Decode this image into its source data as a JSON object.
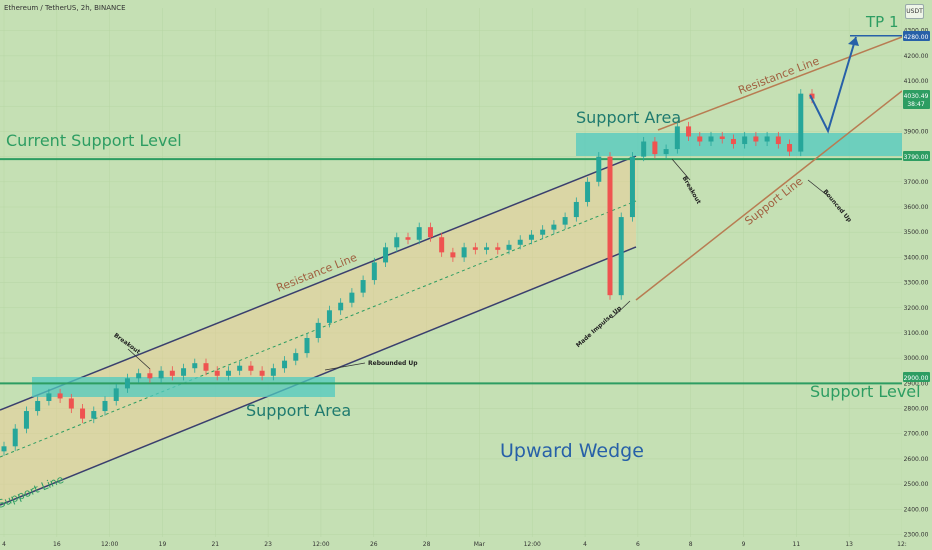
{
  "header": {
    "symbol": "Ethereum / TetherUS, 2h, BINANCE",
    "currency_badge": "USDT"
  },
  "annotations": {
    "current_support_level": "Current Support Level",
    "support_area_left": "Support Area",
    "support_area_right": "Support Area",
    "support_level": "Support Level",
    "upward_wedge": "Upward Wedge",
    "tp1": "TP 1",
    "resistance_line_channel": "Resistance Line",
    "support_line_channel": "Support Line",
    "resistance_line_wedge": "Resistance Line",
    "support_line_wedge": "Support Line",
    "breakout_left": "Breakout",
    "breakout_right": "Breakout",
    "rebounded_up": "Rebounded Up",
    "made_impulse_up": "Made Impulse Up",
    "bounced_up": "Bounced Up"
  },
  "chart_data": {
    "type": "line",
    "title": "Ethereum / TetherUS, 2h, BINANCE",
    "ylim": [
      2290,
      4390
    ],
    "y_ticks": [
      2300,
      2400,
      2500,
      2600,
      2700,
      2800,
      2900,
      3000,
      3100,
      3200,
      3300,
      3400,
      3500,
      3600,
      3700,
      3800,
      3900,
      4000,
      4100,
      4200,
      4300
    ],
    "x_ticks": [
      "4",
      "16",
      "12:00",
      "19",
      "21",
      "23",
      "12:00",
      "26",
      "28",
      "Mar",
      "12:00",
      "4",
      "6",
      "8",
      "9",
      "11",
      "13",
      "12:"
    ],
    "price_labels": {
      "tp1": "4280.00",
      "current": "4030.49",
      "countdown": "38:47",
      "support_current": "3790.00",
      "support_level": "2900.00"
    },
    "levels": {
      "tp1": 4280,
      "current_support": 3790,
      "support_level": 2900
    },
    "colors": {
      "background": "#c5e0b4",
      "candle_up": "#26a69a",
      "candle_down": "#ef5350",
      "channel_line": "#3a3f6e",
      "zone": "#4fc9c0",
      "level": "#2d9d62",
      "wedge_line": "#b87c52",
      "projection": "#2760a8"
    },
    "series": [
      {
        "values": [
          2650,
          2720,
          2790,
          2830,
          2860,
          2840,
          2800,
          2760,
          2790,
          2830,
          2880,
          2920,
          2940,
          2920,
          2950,
          2930,
          2960,
          2980,
          2950,
          2930,
          2950,
          2970,
          2950,
          2930,
          2960,
          2990,
          3020,
          3080,
          3140,
          3190,
          3220,
          3260,
          3310,
          3380,
          3440,
          3480,
          3470,
          3520,
          3480,
          3420,
          3400,
          3440,
          3430,
          3440,
          3430,
          3450,
          3470,
          3490,
          3510,
          3530,
          3560,
          3620,
          3700,
          3800,
          3250,
          3560,
          3800,
          3860,
          3810,
          3830,
          3920,
          3880,
          3860,
          3880,
          3870,
          3850,
          3880,
          3860,
          3880,
          3850,
          3820,
          4050,
          4030
        ]
      }
    ]
  }
}
